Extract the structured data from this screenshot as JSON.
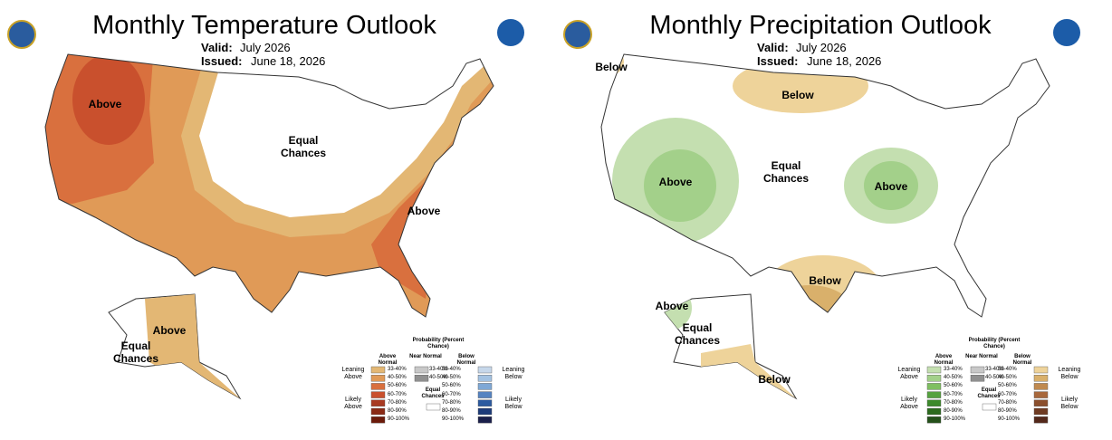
{
  "panels": [
    {
      "title": "Monthly Temperature Outlook",
      "valid_label": "Valid:",
      "valid": "July 2026",
      "issued_label": "Issued:",
      "issued": "June 18, 2026",
      "map_labels": [
        "Above",
        "Equal Chances",
        "Above",
        "Above",
        "Equal Chances"
      ],
      "legend": {
        "title": "Probability (Percent Chance)",
        "left_labels": [
          "Leaning Above",
          "Likely Above"
        ],
        "right_labels": [
          "Leaning Below",
          "Likely Below"
        ],
        "equal": "Equal Chances",
        "columns": [
          {
            "name": "Above Normal",
            "swatches": [
              {
                "label": "33-40%",
                "color": "#e3b774"
              },
              {
                "label": "40-50%",
                "color": "#e09a57"
              },
              {
                "label": "50-60%",
                "color": "#d9703e"
              },
              {
                "label": "60-70%",
                "color": "#c9502d"
              },
              {
                "label": "70-80%",
                "color": "#a83a22"
              },
              {
                "label": "80-90%",
                "color": "#8a2a15"
              },
              {
                "label": "90-100%",
                "color": "#6b1a0a"
              }
            ]
          },
          {
            "name": "Near Normal",
            "swatches": [
              {
                "label": "33-40%",
                "color": "#c8c8c8"
              },
              {
                "label": "40-50%",
                "color": "#909090"
              }
            ]
          },
          {
            "name": "Below Normal",
            "swatches": [
              {
                "label": "33-40%",
                "color": "#c6d7ea"
              },
              {
                "label": "40-50%",
                "color": "#a3c2e2"
              },
              {
                "label": "50-60%",
                "color": "#7fa8d6"
              },
              {
                "label": "60-70%",
                "color": "#5583c1"
              },
              {
                "label": "70-80%",
                "color": "#2c5aa0"
              },
              {
                "label": "80-90%",
                "color": "#1d3b7a"
              },
              {
                "label": "90-100%",
                "color": "#1a1f4a"
              }
            ]
          }
        ]
      }
    },
    {
      "title": "Monthly Precipitation Outlook",
      "valid_label": "Valid:",
      "valid": "July 2026",
      "issued_label": "Issued:",
      "issued": "June 18, 2026",
      "map_labels": [
        "Below",
        "Below",
        "Equal Chances",
        "Above",
        "Above",
        "Below",
        "Above",
        "Equal Chances",
        "Below"
      ],
      "legend": {
        "title": "Probability (Percent Chance)",
        "left_labels": [
          "Leaning Above",
          "Likely Above"
        ],
        "right_labels": [
          "Leaning Below",
          "Likely Below"
        ],
        "equal": "Equal Chances",
        "columns": [
          {
            "name": "Above Normal",
            "swatches": [
              {
                "label": "33-40%",
                "color": "#c4dfb0"
              },
              {
                "label": "40-50%",
                "color": "#a3d08a"
              },
              {
                "label": "50-60%",
                "color": "#7fbf60"
              },
              {
                "label": "60-70%",
                "color": "#55a23e"
              },
              {
                "label": "70-80%",
                "color": "#3d8a2c"
              },
              {
                "label": "80-90%",
                "color": "#2c6b1e"
              },
              {
                "label": "90-100%",
                "color": "#24501a"
              }
            ]
          },
          {
            "name": "Near Normal",
            "swatches": [
              {
                "label": "33-40%",
                "color": "#c8c8c8"
              },
              {
                "label": "40-50%",
                "color": "#909090"
              }
            ]
          },
          {
            "name": "Below Normal",
            "swatches": [
              {
                "label": "33-40%",
                "color": "#eed39a"
              },
              {
                "label": "40-50%",
                "color": "#d9b06b"
              },
              {
                "label": "50-60%",
                "color": "#c08a50"
              },
              {
                "label": "60-70%",
                "color": "#a8683c"
              },
              {
                "label": "70-80%",
                "color": "#8b4f2d"
              },
              {
                "label": "80-90%",
                "color": "#6f3b22"
              },
              {
                "label": "90-100%",
                "color": "#53281a"
              }
            ]
          }
        ]
      }
    }
  ]
}
